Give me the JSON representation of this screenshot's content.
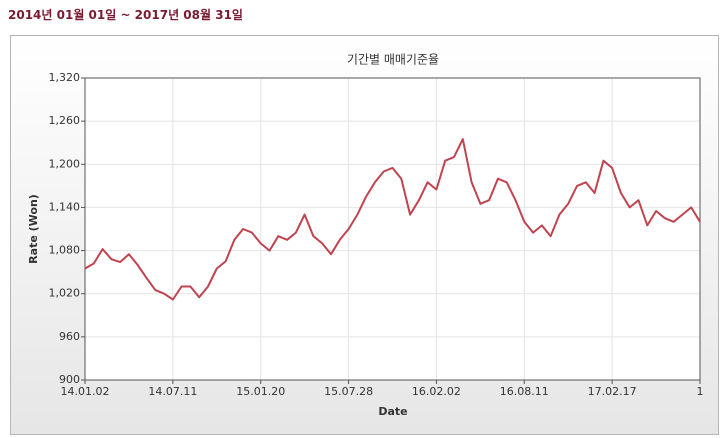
{
  "header": {
    "title": "2014년 01월 01일 ~ 2017년 08월 31일"
  },
  "chart_data": {
    "type": "line",
    "title": "기간별 매매기준율",
    "xlabel": "Date",
    "ylabel": "Rate (Won)",
    "categories": [
      "14.01.02",
      null,
      null,
      null,
      null,
      null,
      null,
      null,
      null,
      null,
      "14.07.11",
      null,
      null,
      null,
      null,
      null,
      null,
      null,
      null,
      null,
      "15.01.20",
      null,
      null,
      null,
      null,
      null,
      null,
      null,
      null,
      null,
      "15.07.28",
      null,
      null,
      null,
      null,
      null,
      null,
      null,
      null,
      null,
      "16.02.02",
      null,
      null,
      null,
      null,
      null,
      null,
      null,
      null,
      null,
      "16.08.11",
      null,
      null,
      null,
      null,
      null,
      null,
      null,
      null,
      null,
      "17.02.17",
      null,
      null,
      null,
      null,
      null,
      null,
      null,
      null,
      null,
      "1"
    ],
    "series": [
      {
        "name": "Rate",
        "color": "#c0444f",
        "values": [
          1055,
          1062,
          1082,
          1068,
          1064,
          1075,
          1060,
          1042,
          1025,
          1020,
          1012,
          1030,
          1030,
          1015,
          1030,
          1055,
          1065,
          1095,
          1110,
          1105,
          1090,
          1080,
          1100,
          1095,
          1105,
          1130,
          1100,
          1090,
          1075,
          1095,
          1110,
          1130,
          1155,
          1175,
          1190,
          1195,
          1180,
          1130,
          1150,
          1175,
          1165,
          1205,
          1210,
          1235,
          1175,
          1145,
          1150,
          1180,
          1175,
          1150,
          1120,
          1105,
          1115,
          1100,
          1130,
          1145,
          1170,
          1175,
          1160,
          1205,
          1195,
          1160,
          1140,
          1150,
          1115,
          1135,
          1125,
          1120,
          1130,
          1140,
          1120
        ]
      }
    ],
    "ylim": [
      900,
      1320
    ],
    "yticks": [
      900,
      960,
      {
        "value": 1020,
        "label": "1,020"
      },
      {
        "value": 1080,
        "label": "1,080"
      },
      {
        "value": 1140,
        "label": "1,140"
      },
      {
        "value": 1200,
        "label": "1,200"
      },
      {
        "value": 1260,
        "label": "1,260"
      },
      {
        "value": 1320,
        "label": "1,320"
      }
    ],
    "grid": true
  }
}
